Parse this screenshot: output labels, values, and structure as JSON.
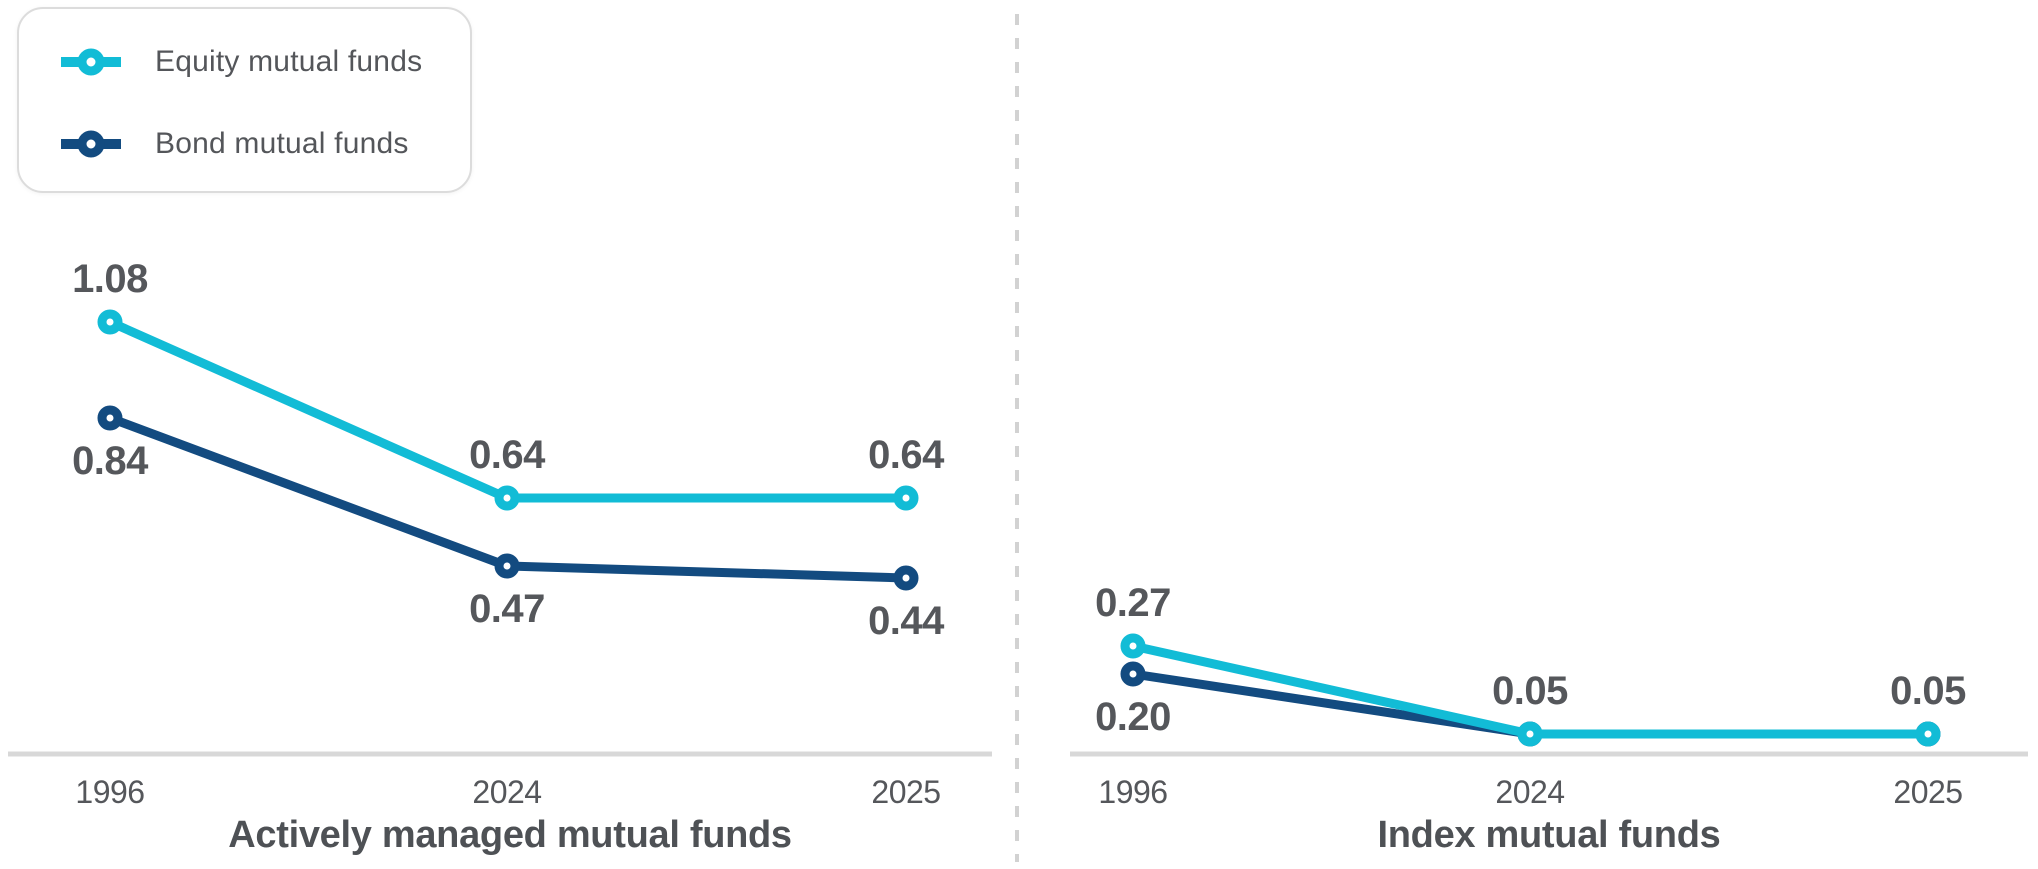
{
  "legend": {
    "items": [
      {
        "label": "Equity mutual funds",
        "color": "#12bcd6",
        "icon": "line-circle-marker"
      },
      {
        "label": "Bond mutual funds",
        "color": "#134b80",
        "icon": "line-circle-marker"
      }
    ]
  },
  "colors": {
    "equity_line": "#12bcd6",
    "bond_line": "#134b80",
    "data_label": "#55575b",
    "tick_label": "#55575b",
    "panel_title": "#4e5155",
    "axis_line": "#d8d8d8",
    "divider": "#d2d2d2",
    "marker_fill": "#ffffff",
    "background": "#ffffff"
  },
  "chart_data": {
    "type": "line",
    "grid": false,
    "legend_position": "top-left",
    "panels": [
      {
        "title": "Actively managed mutual funds",
        "categories": [
          "1996",
          "2024",
          "2025"
        ],
        "ylim": [
          0,
          1.2
        ],
        "series": [
          {
            "name": "Equity mutual funds",
            "color": "#12bcd6",
            "values": [
              1.08,
              0.64,
              0.64
            ],
            "labels": [
              "1.08",
              "0.64",
              "0.64"
            ],
            "label_side": [
              "above",
              "above",
              "above"
            ],
            "label_show": [
              true,
              true,
              true
            ]
          },
          {
            "name": "Bond mutual funds",
            "color": "#134b80",
            "values": [
              0.84,
              0.47,
              0.44
            ],
            "labels": [
              "0.84",
              "0.47",
              "0.44"
            ],
            "label_side": [
              "below",
              "below",
              "below"
            ],
            "label_show": [
              true,
              true,
              true
            ]
          }
        ]
      },
      {
        "title": "Index mutual funds",
        "categories": [
          "1996",
          "2024",
          "2025"
        ],
        "ylim": [
          0,
          1.2
        ],
        "series": [
          {
            "name": "Equity mutual funds",
            "color": "#12bcd6",
            "values": [
              0.27,
              0.05,
              0.05
            ],
            "labels": [
              "0.27",
              "0.05",
              "0.05"
            ],
            "label_side": [
              "above",
              "above",
              "above"
            ],
            "label_show": [
              true,
              true,
              true
            ]
          },
          {
            "name": "Bond mutual funds",
            "color": "#134b80",
            "values": [
              0.2,
              0.05,
              0.05
            ],
            "labels": [
              "0.20",
              "",
              ""
            ],
            "label_side": [
              "below",
              "below",
              "below"
            ],
            "label_show": [
              true,
              false,
              false
            ]
          }
        ]
      }
    ]
  }
}
